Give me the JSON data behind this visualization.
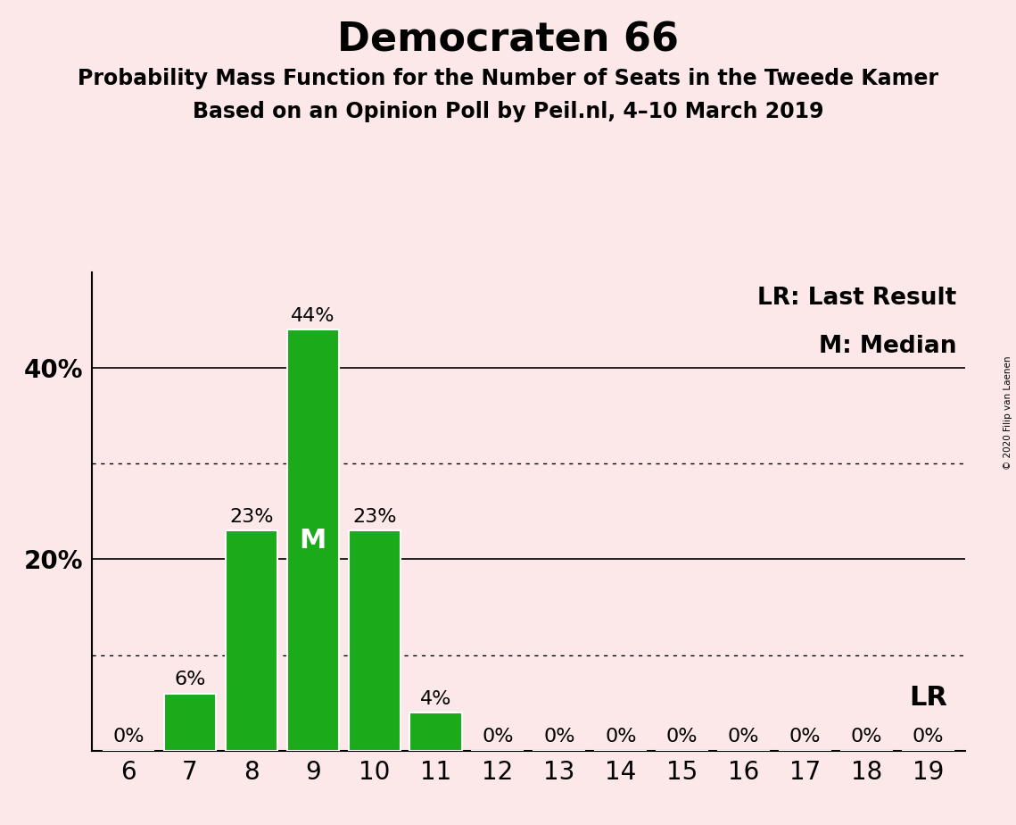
{
  "title": "Democraten 66",
  "subtitle1": "Probability Mass Function for the Number of Seats in the Tweede Kamer",
  "subtitle2": "Based on an Opinion Poll by Peil.nl, 4–10 March 2019",
  "copyright": "© 2020 Filip van Laenen",
  "seats": [
    6,
    7,
    8,
    9,
    10,
    11,
    12,
    13,
    14,
    15,
    16,
    17,
    18,
    19
  ],
  "probabilities": [
    0.0,
    0.06,
    0.23,
    0.44,
    0.23,
    0.04,
    0.0,
    0.0,
    0.0,
    0.0,
    0.0,
    0.0,
    0.0,
    0.0
  ],
  "bar_color": "#1aaa1a",
  "bar_edge_color": "#ffffff",
  "background_color": "#fce8e8",
  "median_seat": 9,
  "last_result_seat": 19,
  "legend_lr": "LR: Last Result",
  "legend_m": "M: Median",
  "ysolid_lines": [
    0.2,
    0.4
  ],
  "ydotted_lines": [
    0.1,
    0.3
  ],
  "ylim": [
    0,
    0.5
  ],
  "title_fontsize": 32,
  "subtitle_fontsize": 17,
  "axis_fontsize": 20,
  "bar_label_fontsize": 16,
  "legend_fontsize": 19,
  "lr_label_fontsize": 22,
  "ytick_positions": [
    0.2,
    0.4
  ],
  "ytick_labels": [
    "20%",
    "40%"
  ]
}
